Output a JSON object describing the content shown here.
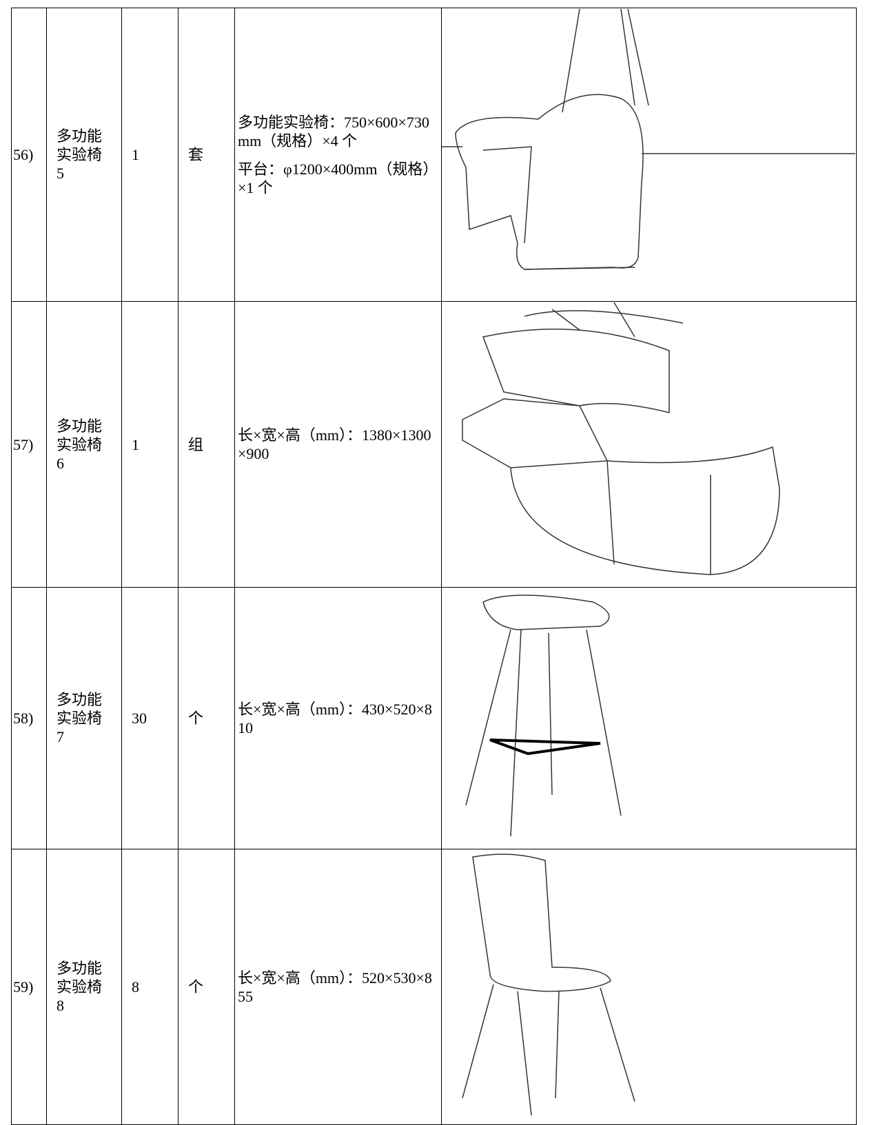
{
  "table": {
    "rows": [
      {
        "no": "56)",
        "name": "多功能实验椅5",
        "qty": "1",
        "unit": "套",
        "spec": [
          "多功能实验椅：750×600×730mm（规格）×4 个",
          "平台：φ1200×400mm（规格）×1 个"
        ]
      },
      {
        "no": "57)",
        "name": "多功能实验椅6",
        "qty": "1",
        "unit": "组",
        "spec": [
          "长×宽×高（mm）：1380×1300×900"
        ]
      },
      {
        "no": "58)",
        "name": "多功能实验椅7",
        "qty": "30",
        "unit": "个",
        "spec": [
          "长×宽×高（mm）：430×520×810"
        ]
      },
      {
        "no": "59)",
        "name": "多功能实验椅8",
        "qty": "8",
        "unit": "个",
        "spec": [
          "长×宽×高（mm）：520×530×855"
        ]
      }
    ]
  }
}
